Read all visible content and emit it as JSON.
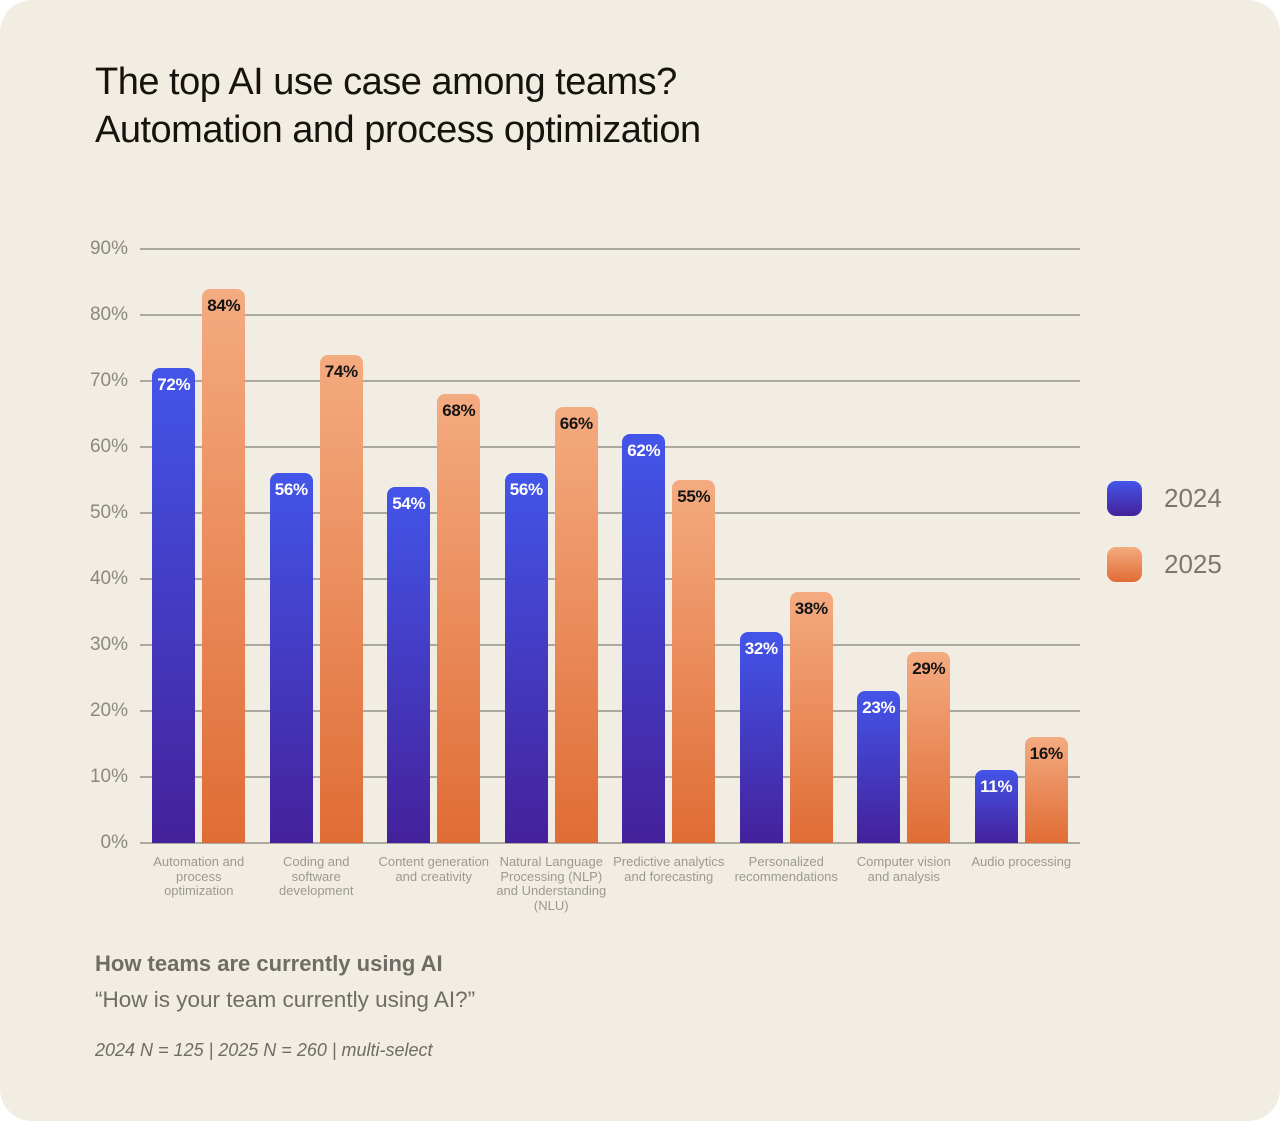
{
  "card": {
    "title_line1": "The top AI use case among teams?",
    "title_line2": "Automation and process optimization"
  },
  "chart_data": {
    "type": "bar",
    "title": "The top AI use case among teams? Automation and process optimization",
    "categories": [
      "Automation and process optimization",
      "Coding and software development",
      "Content generation and creativity",
      "Natural Language Processing (NLP) and Understanding (NLU)",
      "Predictive analytics and forecasting",
      "Personalized recommendations",
      "Computer vision and analysis",
      "Audio processing"
    ],
    "series": [
      {
        "name": "2024",
        "values": [
          72,
          56,
          54,
          56,
          62,
          32,
          23,
          11
        ],
        "color_top": "#4355e9",
        "color_bottom": "#44219b",
        "label_color": "#ffffff"
      },
      {
        "name": "2025",
        "values": [
          84,
          74,
          68,
          66,
          55,
          38,
          29,
          16
        ],
        "color_top": "#f4ab80",
        "color_bottom": "#e06c35",
        "label_color": "#141414"
      }
    ],
    "value_suffix": "%",
    "yticks": [
      "0%",
      "10%",
      "20%",
      "30%",
      "40%",
      "50%",
      "60%",
      "70%",
      "80%",
      "90%"
    ],
    "ylim": [
      0,
      90
    ],
    "grid": true,
    "legend_position": "right"
  },
  "legend": {
    "items": [
      {
        "label": "2024"
      },
      {
        "label": "2025"
      }
    ]
  },
  "footer": {
    "heading": "How teams are currently using AI",
    "question": "“How is your team currently using AI?”",
    "note": "2024 N = 125 | 2025 N = 260 | multi-select"
  }
}
